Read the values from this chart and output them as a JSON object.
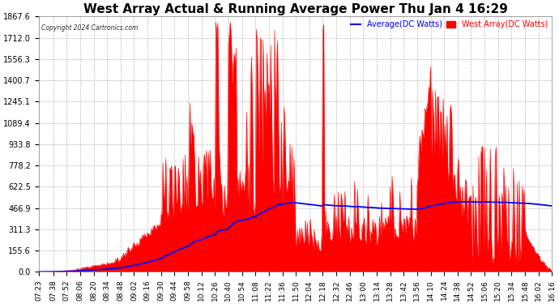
{
  "title": "West Array Actual & Running Average Power Thu Jan 4 16:29",
  "copyright": "Copyright 2024 Cartronics.com",
  "legend_avg": "Average(DC Watts)",
  "legend_west": "West Array(DC Watts)",
  "avg_color": "#0000ff",
  "west_color": "#ff0000",
  "bg_color": "#ffffff",
  "grid_color": "#aaaaaa",
  "yticks": [
    0.0,
    155.6,
    311.3,
    466.9,
    622.5,
    778.2,
    933.8,
    1089.4,
    1245.1,
    1400.7,
    1556.3,
    1712.0,
    1867.6
  ],
  "ymax": 1867.6,
  "title_color": "#000000",
  "title_fontsize": 11,
  "xlabel_fontsize": 6.5,
  "ylabel_fontsize": 7
}
